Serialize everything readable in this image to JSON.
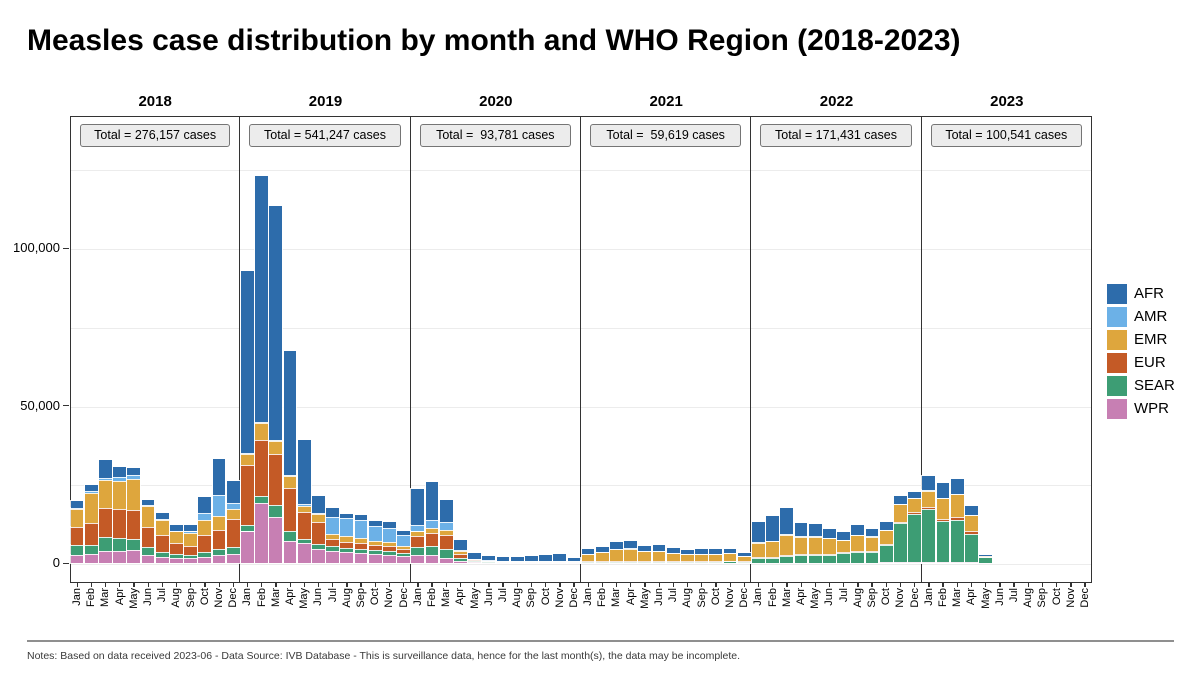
{
  "page": {
    "title": "Measles case distribution by month and WHO Region (2018-2023)",
    "footer_note": "Notes: Based on data received 2023-06 - Data Source: IVB Database - This is surveillance data, hence for the last month(s), the data may be incomplete."
  },
  "chart_data": {
    "type": "bar",
    "stacked": true,
    "title": "Measles case distribution by month and WHO Region (2018-2023)",
    "unit": "cases",
    "months": [
      "Jan",
      "Feb",
      "Mar",
      "Apr",
      "May",
      "Jun",
      "Jul",
      "Aug",
      "Sep",
      "Oct",
      "Nov",
      "Dec"
    ],
    "regions": [
      {
        "name": "AFR",
        "color": "#2d6cab"
      },
      {
        "name": "AMR",
        "color": "#6cb1e7"
      },
      {
        "name": "EMR",
        "color": "#dea63d"
      },
      {
        "name": "EUR",
        "color": "#c45a26"
      },
      {
        "name": "SEAR",
        "color": "#3d9d74"
      },
      {
        "name": "WPR",
        "color": "#c77fb3"
      }
    ],
    "stack_order_bottom_to_top": [
      "WPR",
      "SEAR",
      "EUR",
      "EMR",
      "AMR",
      "AFR"
    ],
    "legend_position": "right",
    "y_axis": {
      "ticks": [
        0,
        50000,
        100000
      ],
      "tick_labels": [
        "0",
        "50,000",
        "100,000"
      ],
      "gridline_step": 25000,
      "gridline_max": 125000,
      "ylim": [
        0,
        141000
      ]
    },
    "facets": [
      {
        "year": "2018",
        "total": 276157,
        "total_label": "Total = 276,157 cases",
        "series": {
          "WPR": [
            2400,
            2900,
            3700,
            3900,
            4200,
            2500,
            2000,
            1500,
            1500,
            2000,
            2500,
            3000
          ],
          "SEAR": [
            3200,
            2800,
            4400,
            4000,
            3500,
            2500,
            1500,
            1200,
            1000,
            1500,
            2000,
            2000
          ],
          "EUR": [
            5700,
            7100,
            9300,
            9200,
            9200,
            6500,
            5500,
            3500,
            3000,
            5500,
            6000,
            9000
          ],
          "EMR": [
            5800,
            9500,
            8900,
            8800,
            9800,
            6500,
            4500,
            3800,
            4000,
            4500,
            4500,
            3000
          ],
          "AMR": [
            300,
            500,
            800,
            1300,
            1100,
            500,
            500,
            300,
            500,
            2500,
            6500,
            2000
          ],
          "AFR": [
            2400,
            1900,
            5500,
            3200,
            2300,
            1500,
            2000,
            1700,
            2000,
            5000,
            11500,
            7000
          ]
        }
      },
      {
        "year": "2019",
        "total": 541247,
        "total_label": "Total = 541,247 cases",
        "series": {
          "WPR": [
            10000,
            19000,
            14500,
            6900,
            6300,
            4500,
            3800,
            3500,
            3200,
            2700,
            2400,
            2100
          ],
          "SEAR": [
            2200,
            2200,
            4000,
            3200,
            1400,
            1400,
            1500,
            1400,
            1400,
            1500,
            1400,
            1000
          ],
          "EUR": [
            19000,
            17700,
            16000,
            13700,
            8400,
            7100,
            2400,
            1800,
            1600,
            1400,
            1500,
            1400
          ],
          "EMR": [
            3500,
            5600,
            4300,
            3700,
            2100,
            2400,
            1400,
            1800,
            1600,
            1400,
            1300,
            1000
          ],
          "AMR": [
            300,
            400,
            400,
            400,
            400,
            400,
            5500,
            5900,
            6000,
            4600,
            4600,
            3500
          ],
          "AFR": [
            57700,
            78100,
            74000,
            39300,
            20500,
            5400,
            3000,
            1100,
            1400,
            1700,
            1700,
            1100
          ]
        }
      },
      {
        "year": "2020",
        "total": 93781,
        "total_label": "Total =  93,781 cases",
        "series": {
          "WPR": [
            2600,
            2500,
            1500,
            500,
            200,
            100,
            100,
            100,
            100,
            100,
            100,
            100
          ],
          "SEAR": [
            2600,
            3000,
            3000,
            1000,
            300,
            200,
            100,
            100,
            100,
            100,
            100,
            100
          ],
          "EUR": [
            3500,
            4000,
            4500,
            1500,
            400,
            200,
            200,
            100,
            100,
            100,
            100,
            100
          ],
          "EMR": [
            1300,
            1500,
            1500,
            800,
            300,
            200,
            200,
            200,
            300,
            300,
            300,
            200
          ],
          "AMR": [
            2100,
            2500,
            2500,
            400,
            200,
            100,
            100,
            100,
            100,
            100,
            100,
            100
          ],
          "AFR": [
            11300,
            12300,
            6900,
            3000,
            1800,
            1300,
            1200,
            1300,
            1400,
            1700,
            2100,
            1000
          ]
        }
      },
      {
        "year": "2021",
        "total": 59619,
        "total_label": "Total =  59,619 cases",
        "series": {
          "WPR": [
            50,
            50,
            50,
            50,
            50,
            50,
            50,
            50,
            50,
            50,
            50,
            50
          ],
          "SEAR": [
            300,
            300,
            400,
            400,
            350,
            350,
            350,
            300,
            350,
            400,
            450,
            350
          ],
          "EUR": [
            150,
            200,
            250,
            250,
            200,
            200,
            200,
            150,
            150,
            150,
            150,
            100
          ],
          "EMR": [
            2400,
            2900,
            3800,
            3900,
            3100,
            3100,
            2600,
            2200,
            2300,
            2300,
            2400,
            1700
          ],
          "AMR": [
            50,
            50,
            50,
            50,
            50,
            50,
            50,
            50,
            50,
            50,
            50,
            50
          ],
          "AFR": [
            1350,
            1700,
            2250,
            2350,
            1750,
            1850,
            1550,
            1350,
            1400,
            1350,
            1400,
            950
          ]
        }
      },
      {
        "year": "2022",
        "total": 171431,
        "total_label": "Total = 171,431 cases",
        "series": {
          "WPR": [
            100,
            100,
            100,
            100,
            100,
            100,
            100,
            100,
            100,
            200,
            200,
            200
          ],
          "SEAR": [
            1500,
            1500,
            2000,
            2500,
            2500,
            2500,
            3000,
            3500,
            3500,
            5500,
            12500,
            15500
          ],
          "EUR": [
            300,
            300,
            400,
            300,
            300,
            300,
            300,
            300,
            300,
            300,
            400,
            400
          ],
          "EMR": [
            4600,
            5000,
            6500,
            5500,
            5500,
            5000,
            4000,
            5000,
            4500,
            4500,
            5500,
            4500
          ],
          "AMR": [
            50,
            50,
            50,
            50,
            50,
            50,
            50,
            50,
            50,
            50,
            50,
            50
          ],
          "AFR": [
            6450,
            8050,
            8450,
            4350,
            4050,
            2850,
            2350,
            3050,
            2350,
            2450,
            2750,
            1950
          ]
        }
      },
      {
        "year": "2023",
        "total": 100541,
        "total_label": "Total = 100,541 cases",
        "series": {
          "WPR": [
            200,
            300,
            200,
            200,
            50,
            0,
            0,
            0,
            0,
            0,
            0,
            0
          ],
          "SEAR": [
            17000,
            13000,
            13300,
            8900,
            1900,
            0,
            0,
            0,
            0,
            0,
            0,
            0
          ],
          "EUR": [
            700,
            800,
            1000,
            1000,
            50,
            0,
            0,
            0,
            0,
            0,
            0,
            0
          ],
          "EMR": [
            5100,
            6400,
            7300,
            5000,
            300,
            0,
            0,
            0,
            0,
            0,
            0,
            0
          ],
          "AMR": [
            100,
            100,
            100,
            100,
            0,
            0,
            0,
            0,
            0,
            0,
            0,
            0
          ],
          "AFR": [
            4400,
            4900,
            4900,
            3000,
            250,
            0,
            0,
            0,
            0,
            0,
            0,
            0
          ]
        }
      }
    ]
  }
}
